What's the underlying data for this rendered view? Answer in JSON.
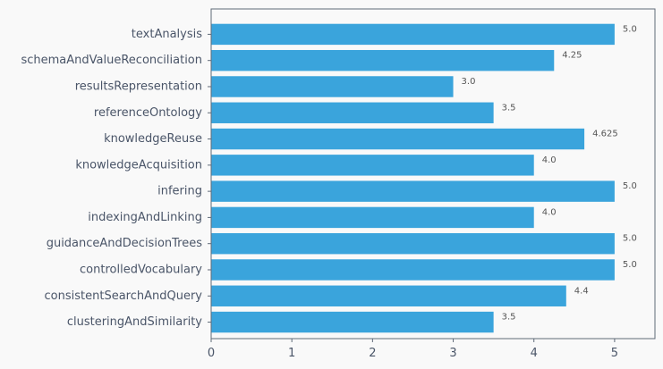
{
  "chart_data": {
    "type": "bar",
    "orientation": "horizontal",
    "title": "",
    "xlabel": "",
    "ylabel": "",
    "categories": [
      "textAnalysis",
      "schemaAndValueReconciliation",
      "resultsRepresentation",
      "referenceOntology",
      "knowledgeReuse",
      "knowledgeAcquisition",
      "infering",
      "indexingAndLinking",
      "guidanceAndDecisionTrees",
      "controlledVocabulary",
      "consistentSearchAndQuery",
      "clusteringAndSimilarity"
    ],
    "values": [
      5.0,
      4.25,
      3.0,
      3.5,
      4.625,
      4.0,
      5.0,
      4.0,
      5.0,
      5.0,
      4.4,
      3.5
    ],
    "value_labels": [
      "5.0",
      "4.25",
      "3.0",
      "3.5",
      "4.625",
      "4.0",
      "5.0",
      "4.0",
      "5.0",
      "5.0",
      "4.4",
      "3.5"
    ],
    "xlim": [
      0,
      5.5
    ],
    "x_ticks": [
      0,
      1,
      2,
      3,
      4,
      5
    ],
    "x_tick_labels": [
      "0",
      "1",
      "2",
      "3",
      "4",
      "5"
    ],
    "grid": false,
    "legend": "none",
    "bar_color": "#3aa4dc"
  }
}
